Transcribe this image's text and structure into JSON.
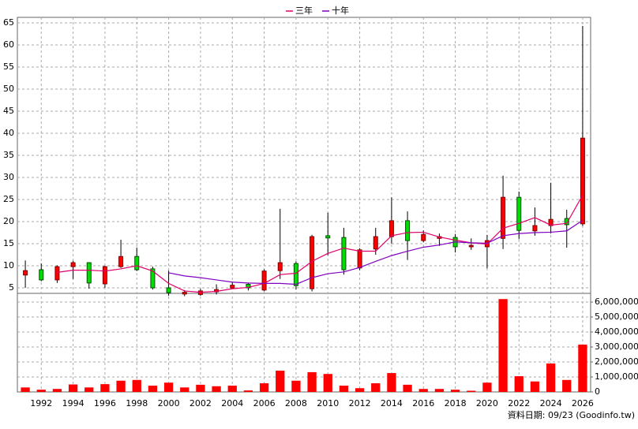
{
  "chart_data": {
    "type": "candlestick",
    "legend": [
      "三年",
      "十年"
    ],
    "categories": [
      null,
      "1992",
      null,
      "1994",
      null,
      "1996",
      null,
      "1998",
      null,
      "2000",
      null,
      "2002",
      null,
      "2004",
      null,
      "2006",
      null,
      "2008",
      null,
      "2010",
      null,
      "2012",
      null,
      "2014",
      null,
      "2016",
      null,
      "2018",
      null,
      "2020",
      null,
      "2022",
      null,
      "2024",
      null,
      "2026"
    ],
    "open": [
      7.9,
      9.1,
      6.8,
      9.8,
      10.7,
      5.9,
      9.8,
      12.1,
      9.3,
      5.0,
      3.6,
      3.5,
      4.1,
      5.0,
      5.8,
      4.5,
      8.9,
      10.5,
      4.8,
      16.8,
      16.4,
      9.5,
      13.8,
      16.6,
      20.2,
      15.7,
      16.2,
      16.4,
      14.3,
      14.3,
      16.2,
      25.5,
      17.9,
      19.1,
      20.7,
      19.5
    ],
    "high": [
      11.2,
      10.5,
      10.1,
      11.1,
      10.8,
      10.0,
      15.9,
      14.1,
      9.8,
      8.9,
      4.5,
      4.8,
      5.8,
      6.3,
      6.1,
      9.2,
      22.9,
      11.0,
      17.0,
      22.0,
      18.6,
      14.0,
      18.6,
      25.5,
      22.3,
      18.0,
      17.3,
      17.2,
      16.2,
      17.0,
      30.4,
      26.8,
      23.2,
      28.8,
      22.7,
      64.3
    ],
    "low": [
      5.0,
      6.5,
      6.1,
      7.0,
      4.8,
      5.0,
      9.5,
      8.8,
      4.6,
      3.2,
      3.1,
      3.2,
      3.5,
      4.8,
      4.4,
      4.2,
      7.0,
      4.6,
      4.2,
      12.4,
      8.0,
      9.0,
      12.5,
      15.0,
      11.3,
      15.3,
      14.5,
      13.0,
      13.6,
      9.4,
      13.8,
      16.0,
      16.8,
      17.3,
      14.1,
      19.0
    ],
    "close": [
      8.9,
      6.8,
      9.8,
      10.7,
      6.1,
      9.8,
      12.1,
      9.1,
      5.0,
      3.9,
      4.0,
      4.3,
      4.6,
      5.6,
      5.0,
      8.8,
      10.7,
      5.5,
      16.6,
      16.3,
      9.1,
      13.6,
      16.6,
      20.2,
      15.7,
      17.1,
      16.6,
      14.3,
      14.6,
      15.7,
      25.5,
      18.0,
      19.1,
      20.5,
      19.3,
      38.9
    ],
    "up_color": "#ff0000",
    "down_color": "#00dd00",
    "lines": [
      {
        "name": "三年",
        "color": "#e0006a",
        "values": [
          null,
          null,
          8.5,
          9.0,
          9.0,
          8.8,
          9.3,
          10.0,
          8.8,
          6.0,
          4.3,
          4.0,
          4.2,
          4.8,
          5.1,
          6.0,
          8.0,
          8.3,
          11.0,
          12.8,
          14.0,
          13.3,
          13.3,
          16.8,
          17.5,
          17.6,
          16.5,
          15.8,
          15.2,
          14.9,
          18.5,
          19.6,
          20.9,
          19.2,
          19.6,
          26.0
        ]
      },
      {
        "name": "十年",
        "color": "#8000c0",
        "values": [
          null,
          null,
          null,
          null,
          null,
          null,
          null,
          null,
          null,
          8.4,
          7.7,
          7.3,
          6.8,
          6.3,
          6.1,
          6.0,
          6.0,
          5.8,
          7.3,
          8.2,
          8.6,
          9.6,
          11.0,
          12.3,
          13.3,
          14.2,
          14.7,
          15.4,
          15.2,
          15.1,
          16.8,
          17.3,
          17.5,
          17.6,
          17.9,
          20.3
        ]
      }
    ],
    "ylim": [
      3.75,
      66.25
    ],
    "yticks": [
      5,
      10,
      15,
      20,
      25,
      30,
      35,
      40,
      45,
      50,
      55,
      60,
      65
    ],
    "volume": {
      "color": "#ff0000",
      "values": [
        300000,
        150000,
        200000,
        500000,
        300000,
        520000,
        750000,
        800000,
        420000,
        620000,
        300000,
        480000,
        380000,
        420000,
        100000,
        580000,
        1420000,
        750000,
        1320000,
        1200000,
        420000,
        250000,
        580000,
        1260000,
        480000,
        200000,
        200000,
        150000,
        80000,
        620000,
        6200000,
        1050000,
        700000,
        1900000,
        800000,
        3160000
      ],
      "ylim": [
        0,
        6580000
      ],
      "yticks": [
        0,
        {
          "value": 1000000,
          "label": "1,000,000"
        },
        {
          "value": 2000000,
          "label": "2,000,000"
        },
        {
          "value": 3000000,
          "label": "3,000,000"
        },
        {
          "value": 4000000,
          "label": "4,000,000"
        },
        {
          "value": 5000000,
          "label": "5,000,000"
        },
        {
          "value": 6000000,
          "label": "6,000,000"
        }
      ]
    },
    "grid": true,
    "footer": "資料日期: 09/23 (Goodinfo.tw)"
  }
}
